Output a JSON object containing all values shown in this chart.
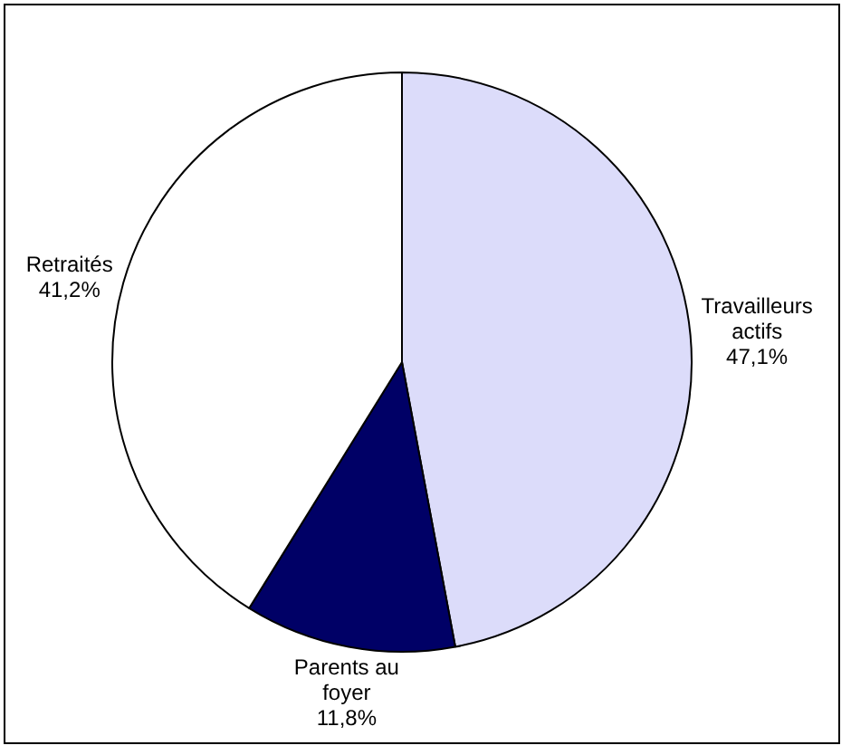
{
  "chart_data": {
    "type": "pie",
    "categories": [
      "Travailleurs actifs",
      "Parents au foyer",
      "Retraités"
    ],
    "values": [
      47.1,
      11.8,
      41.2
    ],
    "colors": [
      "#dcdcfa",
      "#000066",
      "#ffffff"
    ],
    "value_labels": [
      "47,1%",
      "11,8%",
      "41,2%"
    ]
  }
}
